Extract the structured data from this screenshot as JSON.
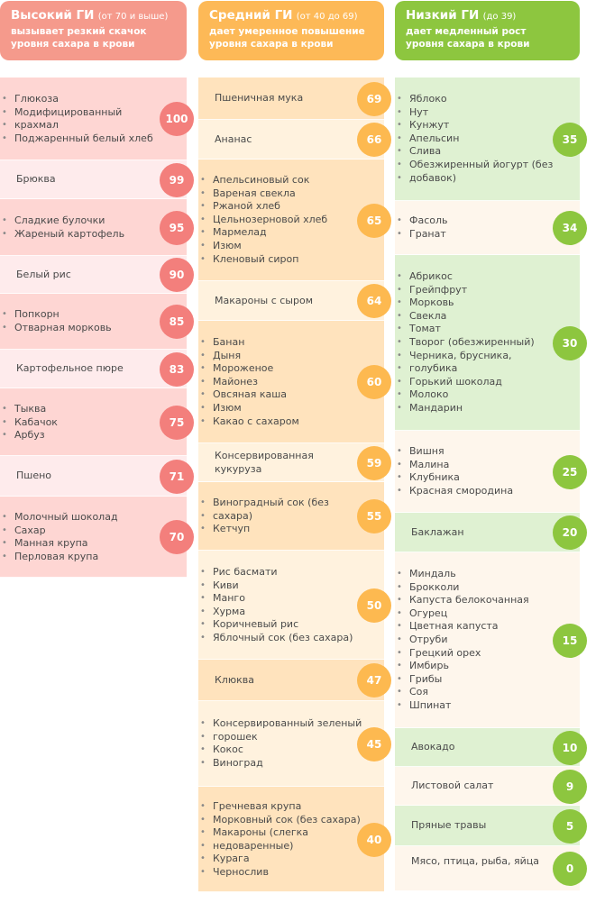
{
  "headers": {
    "high": {
      "title": "Высокий ГИ",
      "range": "(от 70 и выше)",
      "line1": "вызывает резкий скачок",
      "line2": "уровня сахара в крови"
    },
    "medium": {
      "title": "Средний ГИ",
      "range": "(от 40 до 69)",
      "line1": "дает умеренное повышение",
      "line2": "уровня сахара в крови"
    },
    "low": {
      "title": "Низкий ГИ",
      "range": "(до 39)",
      "line1": "дает медленный рост",
      "line2": "уровня сахара в крови"
    }
  },
  "colors": {
    "high_header": "#f59a8c",
    "medium_header": "#fdb957",
    "low_header": "#8dc63f",
    "high_badge": "#f37f7c",
    "medium_badge": "#fdb950",
    "low_badge": "#8dc63f",
    "high_rows": [
      "#fed6d3",
      "#feebec"
    ],
    "medium_rows": [
      "#ffe3bd",
      "#fff2de"
    ],
    "low_rows": [
      "#dff1d2",
      "#fef6ec"
    ]
  },
  "high": [
    {
      "items": [
        "Глюкоза",
        "Модифицированный",
        "крахмал",
        "Поджаренный белый хлеб"
      ],
      "gi": "100"
    },
    {
      "text": "Брюква",
      "gi": "99"
    },
    {
      "items": [
        "Сладкие булочки",
        "Жареный картофель"
      ],
      "gi": "95"
    },
    {
      "text": "Белый рис",
      "gi": "90"
    },
    {
      "items": [
        "Попкорн",
        "Отварная морковь"
      ],
      "gi": "85"
    },
    {
      "text": "Картофельное пюре",
      "gi": "83"
    },
    {
      "items": [
        "Тыква",
        "Кабачок",
        "Арбуз"
      ],
      "gi": "75"
    },
    {
      "text": "Пшено",
      "gi": "71"
    },
    {
      "items": [
        "Молочный шоколад",
        "Сахар",
        "Манная крупа",
        "Перловая крупа"
      ],
      "gi": "70"
    }
  ],
  "medium": [
    {
      "text": "Пшеничная мука",
      "gi": "69"
    },
    {
      "text": "Ананас",
      "gi": "66"
    },
    {
      "items": [
        "Апельсиновый сок",
        "Вареная свекла",
        "Ржаной хлеб",
        "Цельнозерновой хлеб",
        "Мармелад",
        "Изюм",
        "Кленовый сироп"
      ],
      "gi": "65"
    },
    {
      "text": "Макароны с сыром",
      "gi": "64"
    },
    {
      "items": [
        "Банан",
        "Дыня",
        "Мороженое",
        "Майонез",
        "Овсяная каша",
        "Изюм",
        "Какао с сахаром"
      ],
      "gi": "60"
    },
    {
      "text": "Консервированная кукуруза",
      "gi": "59"
    },
    {
      "items": [
        "Виноградный сок (без",
        "сахара)",
        "Кетчуп"
      ],
      "gi": "55"
    },
    {
      "items": [
        "Рис басмати",
        "Киви",
        "Манго",
        "Хурма",
        "Коричневый рис",
        "Яблочный сок (без сахара)"
      ],
      "gi": "50"
    },
    {
      "text": "Клюква",
      "gi": "47"
    },
    {
      "items": [
        "Консервированный зеленый",
        "горошек",
        "Кокос",
        "Виноград"
      ],
      "gi": "45"
    },
    {
      "items": [
        "Гречневая крупа",
        "Морковный сок (без сахара)",
        "Макароны (слегка",
        "недоваренные)",
        "Курага",
        "Чернослив"
      ],
      "gi": "40"
    }
  ],
  "low": [
    {
      "items": [
        "Яблоко",
        "Нут",
        "Кунжут",
        "Апельсин",
        "Слива",
        "Обезжиренный йогурт (без",
        "добавок)"
      ],
      "gi": "35"
    },
    {
      "items": [
        "Фасоль",
        "Гранат"
      ],
      "gi": "34"
    },
    {
      "items": [
        "Абрикос",
        "Грейпфрут",
        "Морковь",
        "Свекла",
        "Томат",
        "Творог (обезжиренный)",
        "Черника, брусника,",
        "голубика",
        "Горький шоколад",
        "Молоко",
        "Мандарин"
      ],
      "gi": "30"
    },
    {
      "items": [
        "Вишня",
        "Малина",
        "Клубника",
        "Красная смородина"
      ],
      "gi": "25"
    },
    {
      "text": "Баклажан",
      "gi": "20"
    },
    {
      "items": [
        "Миндаль",
        "Брокколи",
        "Капуста белокочанная",
        "Огурец",
        "Цветная капуста",
        "Отруби",
        "Грецкий орех",
        "Имбирь",
        "Грибы",
        "Соя",
        "Шпинат"
      ],
      "gi": "15"
    },
    {
      "text": "Авокадо",
      "gi": "10"
    },
    {
      "text": "Листовой салат",
      "gi": "9"
    },
    {
      "text": "Пряные травы",
      "gi": "5"
    },
    {
      "text": "Мясо, птица, рыба, яйца",
      "gi": "0"
    }
  ]
}
